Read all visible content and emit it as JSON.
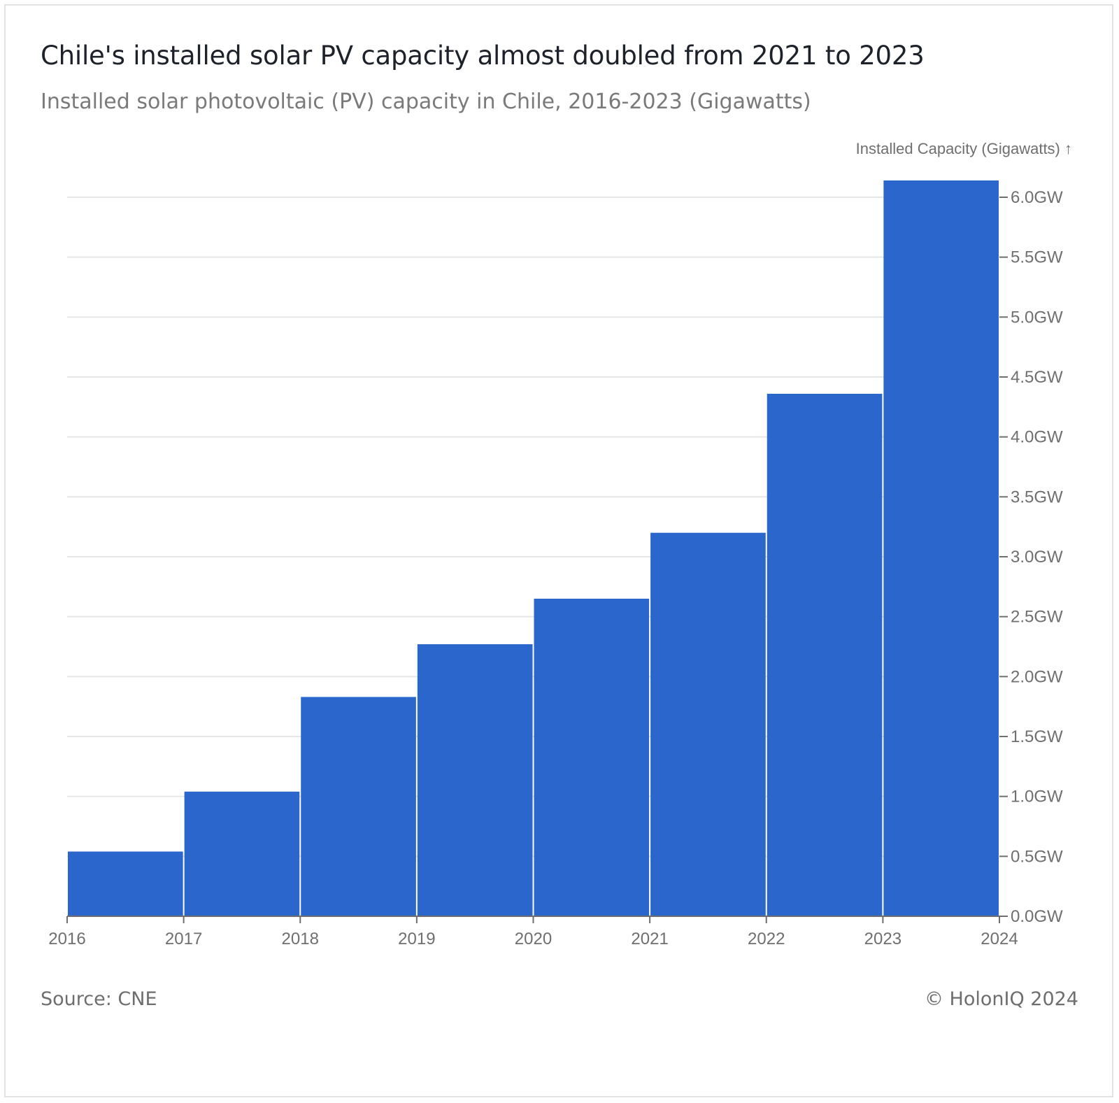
{
  "header": {
    "title": "Chile's installed solar PV capacity almost doubled from 2021 to 2023",
    "subtitle": "Installed solar photovoltaic (PV) capacity in Chile, 2016-2023 (Gigawatts)"
  },
  "footer": {
    "source": "Source: CNE",
    "credit": "© HolonIQ 2024"
  },
  "chart_data": {
    "type": "bar",
    "title": "Chile's installed solar PV capacity almost doubled from 2021 to 2023",
    "subtitle": "Installed solar photovoltaic (PV) capacity in Chile, 2016-2023 (Gigawatts)",
    "ylabel": "Installed Capacity (Gigawatts) ↑",
    "xlabel": "",
    "y_axis_position": "right",
    "ylim": [
      0,
      6.0
    ],
    "y_ticks": [
      0,
      0.5,
      1.0,
      1.5,
      2.0,
      2.5,
      3.0,
      3.5,
      4.0,
      4.5,
      5.0,
      5.5,
      6.0
    ],
    "y_tick_labels": [
      "0.0GW",
      "0.5GW",
      "1.0GW",
      "1.5GW",
      "2.0GW",
      "2.5GW",
      "3.0GW",
      "3.5GW",
      "4.0GW",
      "4.5GW",
      "5.0GW",
      "5.5GW",
      "6.0GW"
    ],
    "x_ticks": [
      "2016",
      "2017",
      "2018",
      "2019",
      "2020",
      "2021",
      "2022",
      "2023",
      "2024"
    ],
    "bins": [
      {
        "start": 2016,
        "end": 2017,
        "value": 0.54
      },
      {
        "start": 2017,
        "end": 2018,
        "value": 1.04
      },
      {
        "start": 2018,
        "end": 2019,
        "value": 1.83
      },
      {
        "start": 2019,
        "end": 2020,
        "value": 2.27
      },
      {
        "start": 2020,
        "end": 2021,
        "value": 2.65
      },
      {
        "start": 2021,
        "end": 2022,
        "value": 3.2
      },
      {
        "start": 2022,
        "end": 2023,
        "value": 4.36
      },
      {
        "start": 2023,
        "end": 2024,
        "value": 6.14
      }
    ],
    "grid": true,
    "colors": {
      "bar": "#2a66cc",
      "grid": "#e6e6e6",
      "axis": "#6f6f6f"
    }
  }
}
